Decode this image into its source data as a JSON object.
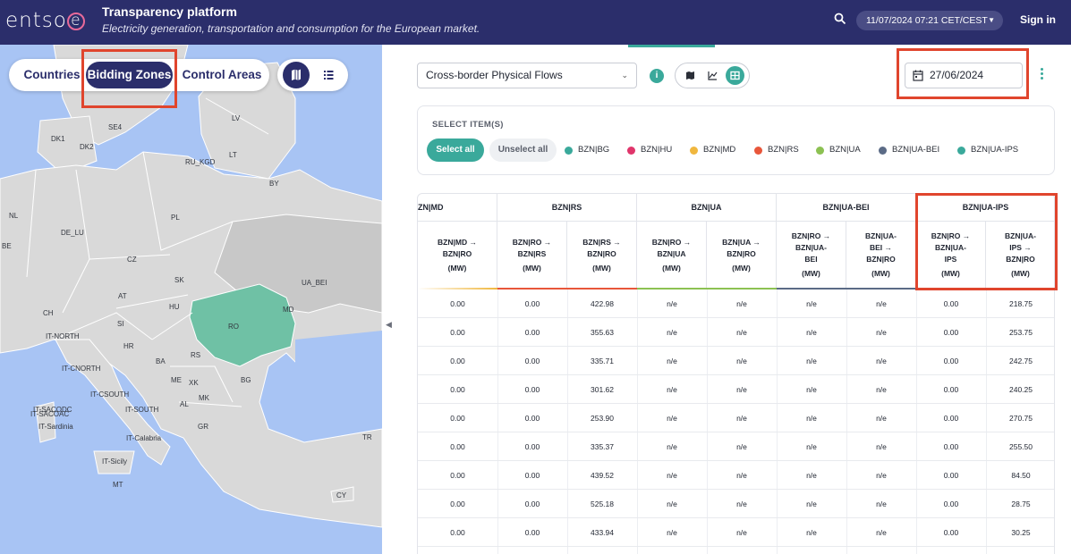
{
  "header": {
    "logo_text": "entso",
    "logo_e": "e",
    "title": "Transparency platform",
    "subtitle": "Electricity generation, transportation and consumption for the European market.",
    "datetime": "11/07/2024 07:21 CET/CEST",
    "signin": "Sign in",
    "icons": [
      "search-icon",
      "chevron-down-icon"
    ]
  },
  "map": {
    "modes": [
      "Countries",
      "Bidding Zones",
      "Control Areas"
    ],
    "active_mode": "Bidding Zones",
    "view_icons": [
      "map-icon",
      "list-icon"
    ],
    "highlight_color": "#6fc1a5",
    "labels": [
      "SE4",
      "DK1",
      "DK2",
      "LV",
      "LT",
      "RU_KGD",
      "BY",
      "NL",
      "BE",
      "DE_LU",
      "PL",
      "CZ",
      "SK",
      "UA_BEI",
      "AT",
      "HU",
      "MD",
      "CH",
      "SI",
      "RO",
      "IT-NORTH",
      "HR",
      "RS",
      "BA",
      "IT-CNORTH",
      "ME",
      "XK",
      "IT-CSOUTH",
      "MK",
      "BG",
      "IT-SACODC",
      "IT-SACOAC",
      "IT-SOUTH",
      "AL",
      "IT-Sardinia",
      "GR",
      "IT-Calabria",
      "TR",
      "IT-Sicily",
      "MT",
      "CY"
    ]
  },
  "toolbar": {
    "dataset": "Cross-border Physical Flows",
    "info": "i",
    "date": "27/06/2024",
    "chart_icons": [
      "map-icon",
      "line-chart-icon",
      "table-icon"
    ],
    "active_chart": "table-icon"
  },
  "items": {
    "title": "SELECT ITEM(S)",
    "select_all": "Select all",
    "unselect_all": "Unselect all",
    "legend": [
      {
        "label": "BZN|BG",
        "color": "#3aa99b"
      },
      {
        "label": "BZN|HU",
        "color": "#e0356b"
      },
      {
        "label": "BZN|MD",
        "color": "#f0b73e"
      },
      {
        "label": "BZN|RS",
        "color": "#e8563a"
      },
      {
        "label": "BZN|UA",
        "color": "#8cc152"
      },
      {
        "label": "BZN|UA-BEI",
        "color": "#5b6b86"
      },
      {
        "label": "BZN|UA-IPS",
        "color": "#3aa99b"
      }
    ]
  },
  "table": {
    "groups": [
      {
        "label": "ZN|MD",
        "color": "#f0b73e"
      },
      {
        "label": "BZN|RS",
        "color": "#e8563a"
      },
      {
        "label": "BZN|UA",
        "color": "#8cc152"
      },
      {
        "label": "BZN|UA-BEI",
        "color": "#5b6b86"
      },
      {
        "label": "BZN|UA-IPS",
        "color": "#3aa99b"
      }
    ],
    "columns": [
      {
        "l1": "BZN|MD →",
        "l2": "BZN|RO",
        "l3": "",
        "unit": "(MW)"
      },
      {
        "l1": "BZN|RO →",
        "l2": "BZN|RS",
        "l3": "",
        "unit": "(MW)"
      },
      {
        "l1": "BZN|RS →",
        "l2": "BZN|RO",
        "l3": "",
        "unit": "(MW)"
      },
      {
        "l1": "BZN|RO →",
        "l2": "BZN|UA",
        "l3": "",
        "unit": "(MW)"
      },
      {
        "l1": "BZN|UA →",
        "l2": "BZN|RO",
        "l3": "",
        "unit": "(MW)"
      },
      {
        "l1": "BZN|RO →",
        "l2": "BZN|UA-",
        "l3": "BEI",
        "unit": "(MW)"
      },
      {
        "l1": "BZN|UA-",
        "l2": "BEI →",
        "l3": "BZN|RO",
        "unit": "(MW)"
      },
      {
        "l1": "BZN|RO →",
        "l2": "BZN|UA-",
        "l3": "IPS",
        "unit": "(MW)"
      },
      {
        "l1": "BZN|UA-",
        "l2": "IPS →",
        "l3": "BZN|RO",
        "unit": "(MW)"
      }
    ],
    "rows": [
      [
        "0.00",
        "0.00",
        "422.98",
        "n/e",
        "n/e",
        "n/e",
        "n/e",
        "0.00",
        "218.75"
      ],
      [
        "0.00",
        "0.00",
        "355.63",
        "n/e",
        "n/e",
        "n/e",
        "n/e",
        "0.00",
        "253.75"
      ],
      [
        "0.00",
        "0.00",
        "335.71",
        "n/e",
        "n/e",
        "n/e",
        "n/e",
        "0.00",
        "242.75"
      ],
      [
        "0.00",
        "0.00",
        "301.62",
        "n/e",
        "n/e",
        "n/e",
        "n/e",
        "0.00",
        "240.25"
      ],
      [
        "0.00",
        "0.00",
        "253.90",
        "n/e",
        "n/e",
        "n/e",
        "n/e",
        "0.00",
        "270.75"
      ],
      [
        "0.00",
        "0.00",
        "335.37",
        "n/e",
        "n/e",
        "n/e",
        "n/e",
        "0.00",
        "255.50"
      ],
      [
        "0.00",
        "0.00",
        "439.52",
        "n/e",
        "n/e",
        "n/e",
        "n/e",
        "0.00",
        "84.50"
      ],
      [
        "0.00",
        "0.00",
        "525.18",
        "n/e",
        "n/e",
        "n/e",
        "n/e",
        "0.00",
        "28.75"
      ],
      [
        "0.00",
        "0.00",
        "433.94",
        "n/e",
        "n/e",
        "n/e",
        "n/e",
        "0.00",
        "30.25"
      ]
    ]
  }
}
